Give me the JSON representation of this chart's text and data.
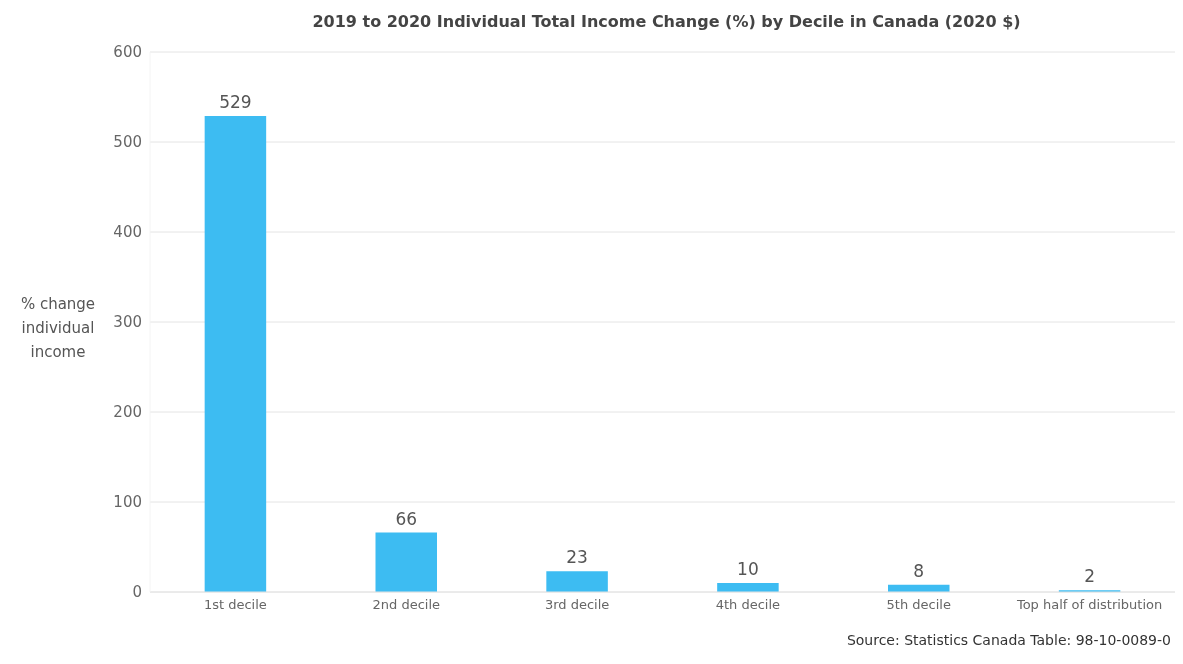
{
  "chart_data": {
    "type": "bar",
    "title": "2019 to 2020 Individual Total Income Change (%) by Decile in Canada (2020 $)",
    "ylabel": "% change individual income",
    "categories": [
      "1st decile",
      "2nd decile",
      "3rd decile",
      "4th decile",
      "5th decile",
      "Top half of distribution"
    ],
    "values": [
      529,
      66,
      23,
      10,
      8,
      2
    ],
    "color": "#3dbcf2",
    "ylim": [
      0,
      600
    ],
    "yticks": [
      0,
      100,
      200,
      300,
      400,
      500,
      600
    ],
    "grid": "y",
    "data_labels": true,
    "legend": false,
    "annotations": [
      "Source: Statistics Canada Table: 98-10-0089-0"
    ]
  }
}
